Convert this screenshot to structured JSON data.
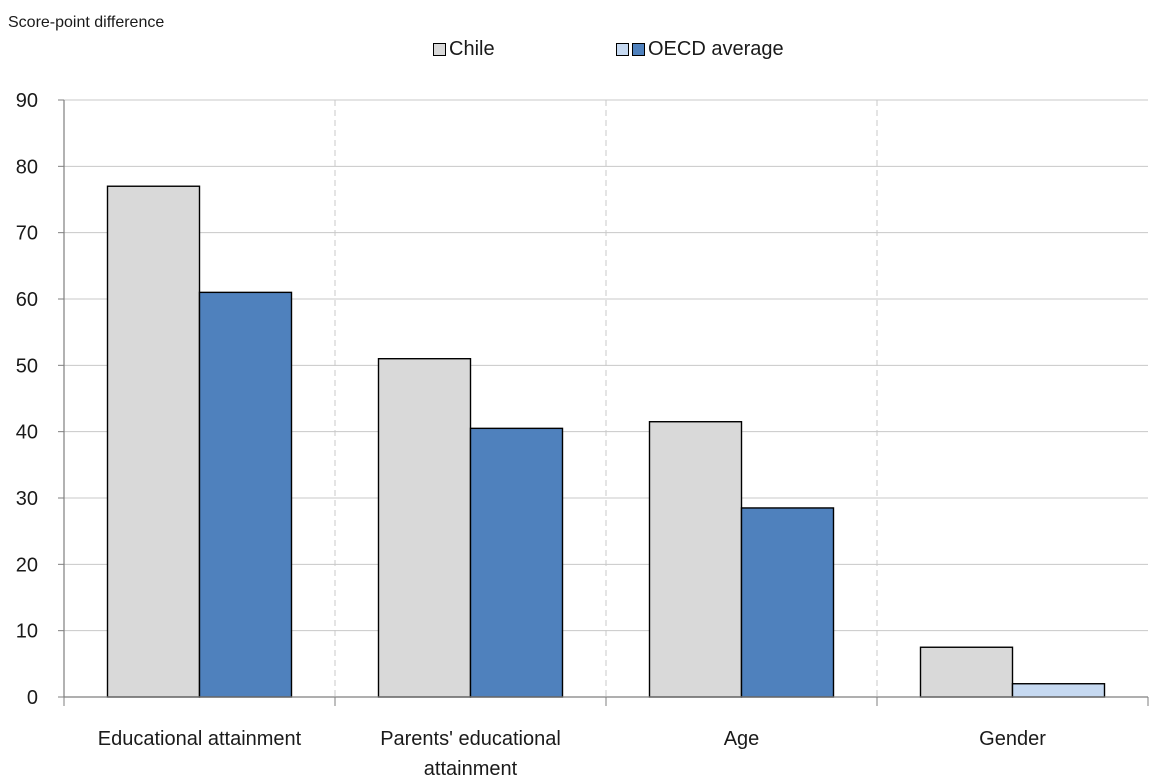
{
  "chart_data": {
    "type": "bar",
    "ylabel": "Score-point difference",
    "ylim": [
      0,
      90
    ],
    "yticks": [
      0,
      10,
      20,
      30,
      40,
      50,
      60,
      70,
      80,
      90
    ],
    "categories": [
      [
        "Educational attainment"
      ],
      [
        "Parents'  educational",
        "attainment"
      ],
      [
        "Age"
      ],
      [
        "Gender"
      ]
    ],
    "series": [
      {
        "name": "Chile",
        "values": [
          77,
          51,
          41.5,
          7.5
        ],
        "color": "#d9d9d9"
      },
      {
        "name": "OECD average",
        "values": [
          61,
          40.5,
          28.5,
          2
        ],
        "color": "#4f81bd",
        "alt_color": "#c6d9f1",
        "alt_color_indices": [
          3
        ]
      }
    ],
    "grid": true,
    "legend": "top-center"
  }
}
